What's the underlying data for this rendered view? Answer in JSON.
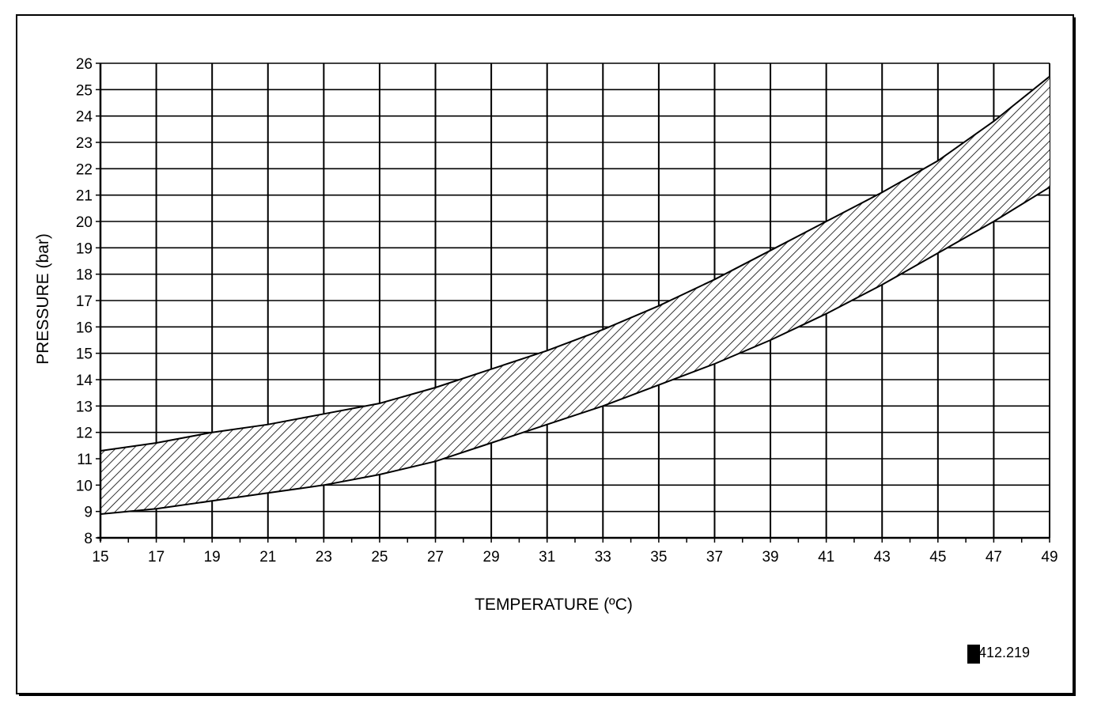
{
  "chart_data": {
    "type": "area",
    "xlabel": "TEMPERATURE (ºC)",
    "ylabel": "PRESSURE (bar)",
    "xlim": [
      15,
      49
    ],
    "ylim": [
      8,
      26
    ],
    "x_ticks": [
      15,
      17,
      19,
      21,
      23,
      25,
      27,
      29,
      31,
      33,
      35,
      37,
      39,
      41,
      43,
      45,
      47,
      49
    ],
    "y_ticks": [
      8,
      9,
      10,
      11,
      12,
      13,
      14,
      15,
      16,
      17,
      18,
      19,
      20,
      21,
      22,
      23,
      24,
      25,
      26
    ],
    "grid": true,
    "band": {
      "x": [
        15,
        17,
        19,
        21,
        23,
        25,
        27,
        29,
        31,
        33,
        35,
        37,
        39,
        41,
        43,
        45,
        47,
        49
      ],
      "upper": [
        11.3,
        11.6,
        12.0,
        12.3,
        12.7,
        13.1,
        13.7,
        14.4,
        15.1,
        15.9,
        16.8,
        17.8,
        18.9,
        20.0,
        21.1,
        22.3,
        23.8,
        25.5
      ],
      "lower": [
        8.9,
        9.1,
        9.4,
        9.7,
        10.0,
        10.4,
        10.9,
        11.6,
        12.3,
        13.0,
        13.8,
        14.6,
        15.5,
        16.5,
        17.6,
        18.8,
        20.0,
        21.3
      ]
    },
    "hatch": "diagonal"
  },
  "figure_code": "412.219"
}
